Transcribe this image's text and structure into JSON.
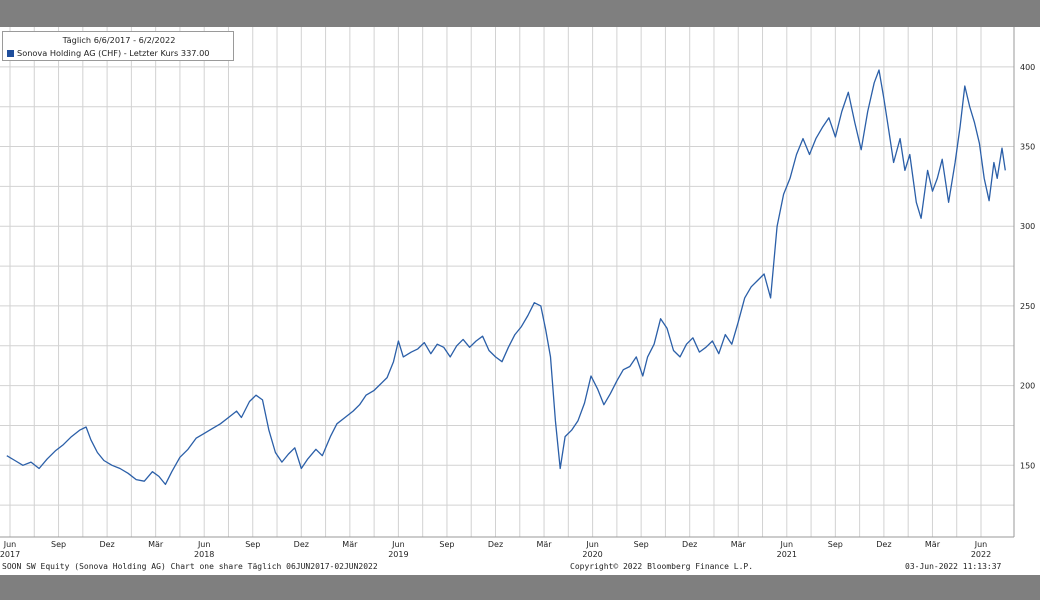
{
  "legend": {
    "period": "Täglich 6/6/2017 - 6/2/2022",
    "series": "Sonova Holding AG (CHF) - Letzter Kurs 337.00"
  },
  "footer": {
    "left": "SOON SW Equity (Sonova Holding AG) Chart one share  Täglich 06JUN2017-02JUN2022",
    "center": "Copyright© 2022 Bloomberg Finance L.P.",
    "right": "03-Jun-2022 11:13:37"
  },
  "colors": {
    "line": "#2b5fa8",
    "grid": "#d2d2d2",
    "background": "#ffffff",
    "page": "#7f7f7f"
  },
  "chart_data": {
    "type": "line",
    "x_unit": "months since Jun 2017",
    "ylim": [
      105,
      425
    ],
    "y_ticks": [
      150,
      200,
      250,
      300,
      350,
      400
    ],
    "x_ticks": [
      {
        "x": 0,
        "label": "Jun",
        "year": "2017"
      },
      {
        "x": 3,
        "label": "Sep",
        "year": ""
      },
      {
        "x": 6,
        "label": "Dez",
        "year": ""
      },
      {
        "x": 9,
        "label": "Mär",
        "year": ""
      },
      {
        "x": 12,
        "label": "Jun",
        "year": "2018"
      },
      {
        "x": 15,
        "label": "Sep",
        "year": ""
      },
      {
        "x": 18,
        "label": "Dez",
        "year": ""
      },
      {
        "x": 21,
        "label": "Mär",
        "year": ""
      },
      {
        "x": 24,
        "label": "Jun",
        "year": "2019"
      },
      {
        "x": 27,
        "label": "Sep",
        "year": ""
      },
      {
        "x": 30,
        "label": "Dez",
        "year": ""
      },
      {
        "x": 33,
        "label": "Mär",
        "year": ""
      },
      {
        "x": 36,
        "label": "Jun",
        "year": "2020"
      },
      {
        "x": 39,
        "label": "Sep",
        "year": ""
      },
      {
        "x": 42,
        "label": "Dez",
        "year": ""
      },
      {
        "x": 45,
        "label": "Mär",
        "year": ""
      },
      {
        "x": 48,
        "label": "Jun",
        "year": "2021"
      },
      {
        "x": 51,
        "label": "Sep",
        "year": ""
      },
      {
        "x": 54,
        "label": "Dez",
        "year": ""
      },
      {
        "x": 57,
        "label": "Mär",
        "year": ""
      },
      {
        "x": 60,
        "label": "Jun",
        "year": "2022"
      }
    ],
    "x_grid": [
      0,
      1.5,
      3,
      4.5,
      6,
      7.5,
      9,
      10.5,
      12,
      13.5,
      15,
      16.5,
      18,
      19.5,
      21,
      22.5,
      24,
      25.5,
      27,
      28.5,
      30,
      31.5,
      33,
      34.5,
      36,
      37.5,
      39,
      40.5,
      42,
      43.5,
      45,
      46.5,
      48,
      49.5,
      51,
      52.5,
      54,
      55.5,
      57,
      58.5,
      60
    ],
    "y_grid": [
      125,
      150,
      175,
      200,
      225,
      250,
      275,
      300,
      325,
      350,
      375,
      400
    ],
    "series": [
      {
        "name": "Sonova Holding AG (CHF) - Letzter Kurs",
        "points": [
          [
            -0.2,
            156
          ],
          [
            0.3,
            153
          ],
          [
            0.8,
            150
          ],
          [
            1.3,
            152
          ],
          [
            1.8,
            148
          ],
          [
            2.3,
            154
          ],
          [
            2.8,
            159
          ],
          [
            3.3,
            163
          ],
          [
            3.8,
            168
          ],
          [
            4.3,
            172
          ],
          [
            4.7,
            174
          ],
          [
            5.0,
            166
          ],
          [
            5.4,
            158
          ],
          [
            5.8,
            153
          ],
          [
            6.3,
            150
          ],
          [
            6.8,
            148
          ],
          [
            7.3,
            145
          ],
          [
            7.8,
            141
          ],
          [
            8.3,
            140
          ],
          [
            8.8,
            146
          ],
          [
            9.2,
            143
          ],
          [
            9.6,
            138
          ],
          [
            10.0,
            146
          ],
          [
            10.5,
            155
          ],
          [
            11.0,
            160
          ],
          [
            11.5,
            167
          ],
          [
            12.0,
            170
          ],
          [
            12.5,
            173
          ],
          [
            13.0,
            176
          ],
          [
            13.5,
            180
          ],
          [
            14.0,
            184
          ],
          [
            14.3,
            180
          ],
          [
            14.8,
            190
          ],
          [
            15.2,
            194
          ],
          [
            15.6,
            191
          ],
          [
            16.0,
            172
          ],
          [
            16.4,
            158
          ],
          [
            16.8,
            152
          ],
          [
            17.2,
            157
          ],
          [
            17.6,
            161
          ],
          [
            18.0,
            148
          ],
          [
            18.4,
            154
          ],
          [
            18.9,
            160
          ],
          [
            19.3,
            156
          ],
          [
            19.8,
            168
          ],
          [
            20.2,
            176
          ],
          [
            20.7,
            180
          ],
          [
            21.2,
            184
          ],
          [
            21.6,
            188
          ],
          [
            22.0,
            194
          ],
          [
            22.5,
            197
          ],
          [
            22.9,
            201
          ],
          [
            23.3,
            205
          ],
          [
            23.7,
            215
          ],
          [
            24.0,
            228
          ],
          [
            24.3,
            218
          ],
          [
            24.8,
            221
          ],
          [
            25.2,
            223
          ],
          [
            25.6,
            227
          ],
          [
            26.0,
            220
          ],
          [
            26.4,
            226
          ],
          [
            26.8,
            224
          ],
          [
            27.2,
            218
          ],
          [
            27.6,
            225
          ],
          [
            28.0,
            229
          ],
          [
            28.4,
            224
          ],
          [
            28.8,
            228
          ],
          [
            29.2,
            231
          ],
          [
            29.6,
            222
          ],
          [
            30.0,
            218
          ],
          [
            30.4,
            215
          ],
          [
            30.8,
            224
          ],
          [
            31.2,
            232
          ],
          [
            31.6,
            237
          ],
          [
            32.0,
            244
          ],
          [
            32.4,
            252
          ],
          [
            32.8,
            250
          ],
          [
            33.1,
            235
          ],
          [
            33.4,
            218
          ],
          [
            33.7,
            178
          ],
          [
            34.0,
            148
          ],
          [
            34.3,
            168
          ],
          [
            34.7,
            172
          ],
          [
            35.1,
            178
          ],
          [
            35.5,
            189
          ],
          [
            35.9,
            206
          ],
          [
            36.3,
            198
          ],
          [
            36.7,
            188
          ],
          [
            37.1,
            195
          ],
          [
            37.5,
            203
          ],
          [
            37.9,
            210
          ],
          [
            38.3,
            212
          ],
          [
            38.7,
            218
          ],
          [
            39.1,
            206
          ],
          [
            39.4,
            218
          ],
          [
            39.8,
            226
          ],
          [
            40.2,
            242
          ],
          [
            40.6,
            236
          ],
          [
            41.0,
            222
          ],
          [
            41.4,
            218
          ],
          [
            41.8,
            226
          ],
          [
            42.2,
            230
          ],
          [
            42.6,
            221
          ],
          [
            43.0,
            224
          ],
          [
            43.4,
            228
          ],
          [
            43.8,
            220
          ],
          [
            44.2,
            232
          ],
          [
            44.6,
            226
          ],
          [
            45.0,
            240
          ],
          [
            45.4,
            255
          ],
          [
            45.8,
            262
          ],
          [
            46.2,
            266
          ],
          [
            46.6,
            270
          ],
          [
            47.0,
            255
          ],
          [
            47.4,
            300
          ],
          [
            47.8,
            320
          ],
          [
            48.2,
            330
          ],
          [
            48.6,
            345
          ],
          [
            49.0,
            355
          ],
          [
            49.4,
            345
          ],
          [
            49.8,
            355
          ],
          [
            50.2,
            362
          ],
          [
            50.6,
            368
          ],
          [
            51.0,
            356
          ],
          [
            51.4,
            372
          ],
          [
            51.8,
            384
          ],
          [
            52.2,
            365
          ],
          [
            52.6,
            348
          ],
          [
            53.0,
            372
          ],
          [
            53.4,
            390
          ],
          [
            53.7,
            398
          ],
          [
            54.0,
            380
          ],
          [
            54.3,
            360
          ],
          [
            54.6,
            340
          ],
          [
            55.0,
            355
          ],
          [
            55.3,
            335
          ],
          [
            55.6,
            345
          ],
          [
            56.0,
            315
          ],
          [
            56.3,
            305
          ],
          [
            56.7,
            335
          ],
          [
            57.0,
            322
          ],
          [
            57.3,
            330
          ],
          [
            57.6,
            342
          ],
          [
            58.0,
            315
          ],
          [
            58.4,
            340
          ],
          [
            58.7,
            362
          ],
          [
            59.0,
            388
          ],
          [
            59.3,
            375
          ],
          [
            59.6,
            365
          ],
          [
            59.9,
            352
          ],
          [
            60.2,
            330
          ],
          [
            60.5,
            316
          ],
          [
            60.8,
            340
          ],
          [
            61.0,
            330
          ],
          [
            61.3,
            349
          ],
          [
            61.5,
            335
          ]
        ]
      }
    ]
  }
}
